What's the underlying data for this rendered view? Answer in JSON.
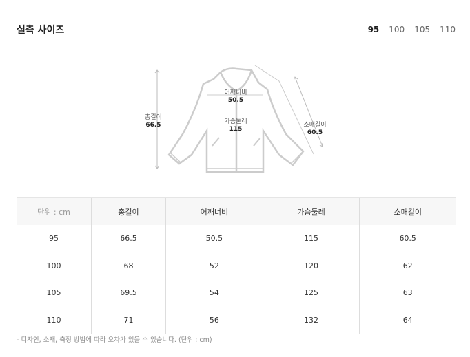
{
  "title": "실측 사이즈",
  "size_tabs": [
    {
      "label": "95",
      "active": true
    },
    {
      "label": "100",
      "active": false
    },
    {
      "label": "105",
      "active": false
    },
    {
      "label": "110",
      "active": false
    }
  ],
  "diagram": {
    "total_length": {
      "label": "총길이",
      "value": "66.5"
    },
    "shoulder": {
      "label": "어깨너비",
      "value": "50.5"
    },
    "chest": {
      "label": "가슴둘레",
      "value": "115"
    },
    "sleeve": {
      "label": "소매길이",
      "value": "60.5"
    }
  },
  "table": {
    "headers": [
      "단위 : cm",
      "총길이",
      "어깨너비",
      "가슴둘레",
      "소매길이"
    ],
    "rows": [
      [
        "95",
        "66.5",
        "50.5",
        "115",
        "60.5"
      ],
      [
        "100",
        "68",
        "52",
        "120",
        "62"
      ],
      [
        "105",
        "69.5",
        "54",
        "125",
        "63"
      ],
      [
        "110",
        "71",
        "56",
        "132",
        "64"
      ]
    ]
  },
  "note": "- 디자인, 소재, 측정 방법에 따라 오차가 있을 수 있습니다. (단위 : cm)"
}
